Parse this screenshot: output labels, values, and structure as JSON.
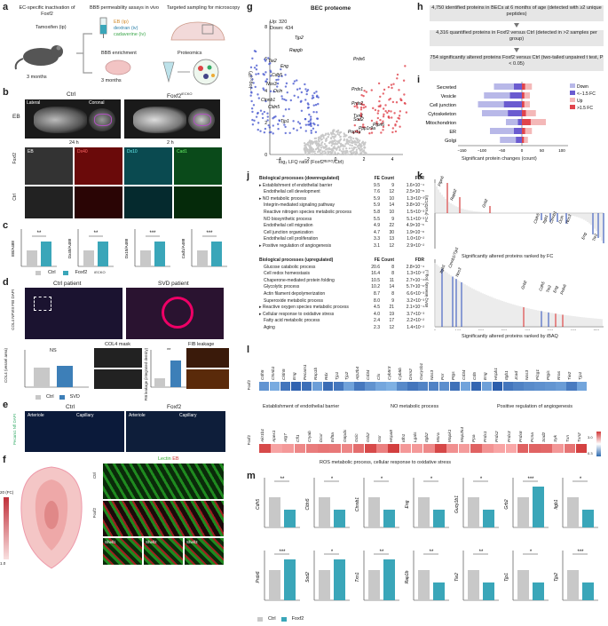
{
  "panels": {
    "a": {
      "letter": "a",
      "headers": [
        "EC-specific inactivation of Foxf2",
        "BBB permeability assays in vivo",
        "Targeted sampling for microscopy"
      ],
      "tamoxifen": "Tamoxifen (ip)",
      "age1": "3 months",
      "age2": "3 months",
      "tracers": [
        "EB (ip)",
        "dextran (iv)",
        "cadaverine (iv)"
      ],
      "bec_enrich": "BBB enrichment",
      "proteomics": "Proteomics"
    },
    "b": {
      "letter": "b",
      "ctrl": "Ctrl",
      "foxf2": "Foxf2",
      "sup": "iECKO",
      "lateral": "Lateral",
      "coronal": "Coronal",
      "eb": "EB",
      "t24": "24 h",
      "t2": "2 h",
      "labels": [
        "EB",
        "Dx40",
        "Dx10",
        "Cad1"
      ],
      "rowlabels": [
        "Foxf2",
        "Ctrl"
      ]
    },
    "c": {
      "letter": "c",
      "ylabels": [
        "EB/A488",
        "Dx40/A488",
        "Dx10/A488",
        "Cad1/A488"
      ],
      "sig": [
        "**",
        "**",
        "***",
        "***"
      ],
      "legend": [
        "Ctrl",
        "Foxf2"
      ],
      "legend_sup": "iECKO",
      "colors": {
        "ctrl": "#c8c8c8",
        "ko": "#3aa6b9"
      }
    },
    "d": {
      "letter": "d",
      "ctrl_patient": "Ctrl patient",
      "svd_patient": "SVD patient",
      "stain": "COL4 NFVIII FIB DAPI",
      "col4mask": "COL4 mask",
      "fib": "FIB leakage",
      "ylab1": "COL4 (vessel area)",
      "ylab2": "FIB leakage (integrated density)",
      "ns": "NS",
      "sig": "**",
      "legend": [
        "Ctrl",
        "SVD"
      ]
    },
    "e": {
      "letter": "e",
      "ctrl": "Ctrl",
      "foxf2": "Foxf2",
      "arteriole": "Arteriole",
      "capillary": "Capillary",
      "stain": "Pecam1 Nfl DAPI"
    },
    "f": {
      "letter": "f",
      "stain_lectin": "Lectin",
      "stain_eb": "EB",
      "ctrl": "Ctrl",
      "foxf2": "Foxf2",
      "scale_top": "20 (FC)",
      "scale_bottom": "1.0",
      "shells": [
        "Shell1",
        "Shell2",
        "Shell3"
      ]
    },
    "g": {
      "letter": "g",
      "title": "BEC proteome",
      "up": "Up: 320",
      "down": "Down: 434",
      "xlabel": "log₂ LFQ ratio (Foxf2ᴵᴱᶜᴷᴼ/Ctrl)",
      "ylabel": "−log₁₀(P)",
      "xticks": [
        "−4",
        "−2",
        "0",
        "2",
        "4"
      ],
      "yticks": [
        "0",
        "2",
        "4",
        "6",
        "8"
      ],
      "genes_down": [
        "Tjp2",
        "Rapgb",
        "Tie2",
        "Eng",
        "Cdh5",
        "Nos3",
        "Ocln",
        "Ctnnb1",
        "Cldn5",
        "Tjp1"
      ],
      "genes_up": [
        "Prdx6",
        "Prdx1",
        "Prdx2",
        "Txn1",
        "Ptpn6",
        "Sod2",
        "Ppp1r9a",
        "Pop1a"
      ]
    },
    "h": {
      "letter": "h",
      "box1": "4,750 identified proteins in BECs at 6 months of age (detected with ≥2 unique peptides)",
      "box2": "4,316 quantified proteins in Foxf2 versus Ctrl (detected in >2 samples per group)",
      "box3": "754 significantly altered proteins Foxf2 versus Ctrl (two-tailed unpaired t test, P < 0.05)"
    },
    "i": {
      "letter": "i",
      "xlabel": "Significant protein changes (count)",
      "xticks": [
        "−150",
        "−100",
        "−50",
        "0",
        "50",
        "100"
      ],
      "legend": [
        "Down",
        "<−1.5 FC",
        "Up",
        ">1.5 FC"
      ]
    },
    "j": {
      "letter": "j",
      "hdr_down": [
        "Biological processes (downregulated)",
        "FE",
        "Count",
        "FDR"
      ],
      "rows_down": [
        [
          "Establishment of endothelial barrier",
          "9.5",
          "9",
          "1.6×10⁻⁴"
        ],
        [
          "Endothelial cell development",
          "7.6",
          "12",
          "2.5×10⁻⁵"
        ],
        [
          "NO metabolic process",
          "5.9",
          "10",
          "1.3×10⁻³"
        ],
        [
          "Integrin-mediated signaling pathway",
          "5.9",
          "14",
          "3.8×10⁻⁴"
        ],
        [
          "Reactive nitrogen species metabolic process",
          "5.8",
          "10",
          "1.5×10⁻³"
        ],
        [
          "NO biosynthetic process",
          "5.5",
          "9",
          "5.1×10⁻³"
        ],
        [
          "Endothelial cell migration",
          "4.9",
          "22",
          "4.9×10⁻⁶"
        ],
        [
          "Cell junction organization",
          "4.7",
          "30",
          "1.9×10⁻⁸"
        ],
        [
          "Endothelial cell proliferation",
          "3.3",
          "13",
          "1.0×10⁻²"
        ],
        [
          "Positive regulation of angiogenesis",
          "3.1",
          "12",
          "2.9×10⁻²"
        ]
      ],
      "hdr_up": [
        "Biological processes (upregulated)",
        "FE",
        "Count",
        "FDR"
      ],
      "rows_up": [
        [
          "Glucose catabolic process",
          "20.6",
          "8",
          "2.8×10⁻⁴"
        ],
        [
          "Cell redox homeostasis",
          "16.4",
          "8",
          "1.3×10⁻³"
        ],
        [
          "Chaperone-mediated protein folding",
          "10.5",
          "11",
          "2.7×10⁻⁴"
        ],
        [
          "Glycolytic process",
          "10.2",
          "14",
          "5.7×10⁻⁶"
        ],
        [
          "Actin filament depolymerization",
          "8.7",
          "8",
          "6.6×10⁻³"
        ],
        [
          "Superoxide metabolic process",
          "8.0",
          "9",
          "3.2×10⁻³"
        ],
        [
          "Reactive oxygen species metabolic process",
          "4.5",
          "21",
          "2.1×10⁻⁴"
        ],
        [
          "Cellular response to oxidative stress",
          "4.0",
          "19",
          "3.7×10⁻³"
        ],
        [
          "Fatty acid metabolic process",
          "2.4",
          "17",
          "2.2×10⁻²"
        ],
        [
          "Aging",
          "2.3",
          "12",
          "1.4×10⁻²"
        ]
      ]
    },
    "k": {
      "letter": "k",
      "ylabel_top": "FC (Foxf2/Ctrl)",
      "xlabel_top": "Significantly altered proteins ranked by FC",
      "ylabel_bot": "iBAQ intensity (log₁₀)",
      "xlabel_bot": "Significantly altered proteins ranked by iBAQ",
      "genes_top_up": [
        "Ptpn6",
        "Rapb2",
        "Grb2"
      ],
      "genes_top_down": [
        "Cldn5",
        "Itgb1",
        "Ctnnb1",
        "Ocln",
        "Nos3",
        "Eng",
        "Tie2"
      ],
      "genes_bot": [
        "Itgb1",
        "Ctnnb1/Tjp1",
        "Nos3",
        "Grb2",
        "Cdh5",
        "Tie2",
        "Eng",
        "Prdx6"
      ],
      "xticks_bot": [
        "0",
        "100",
        "200",
        "300",
        "400",
        "500",
        "600",
        "700"
      ]
    },
    "l": {
      "letter": "l",
      "rowlabel": "Foxf2",
      "group1": "Establishment of endothelial barrier",
      "group2": "NO metabolic process",
      "group3": "Positive regulation of angiogenesis",
      "group4": "ROS metabolic process, cellular response to oxidative stress",
      "genes_row1": [
        "Cdh5",
        "Ctnnb1",
        "Cldn5",
        "Eng",
        "Pecam1",
        "Rap1b",
        "Rdx",
        "Tjp1",
        "Tjp2",
        "Atp2b4",
        "Cd34",
        "Clu",
        "Cyb5r3",
        "Cyb5b",
        "Dnm2",
        "Gucy1b1",
        "Nos3",
        "Por",
        "Ptgs",
        "Cd34",
        "Cd5",
        "Eng",
        "Hspb1",
        "Itgb1",
        "Jcad",
        "Nos3",
        "Plcg1",
        "Ptgis",
        "Rras",
        "Tie2",
        "Tjp1"
      ],
      "genes_row2": [
        "Akr1b1",
        "Apex1",
        "Atg7",
        "Cfl1",
        "Cryab",
        "Dcxr",
        "Eif5a",
        "G6pdx",
        "Gclc",
        "Grb2",
        "Gsr",
        "Hspa8",
        "Idh1",
        "Lgals",
        "Itgb2",
        "Msra",
        "Mapk1",
        "Map2k4",
        "Ppa",
        "Prdx1",
        "Prdx2",
        "Prdx3",
        "Prdx6",
        "Pcna",
        "Sod2",
        "Syk",
        "Txn",
        "Txn2"
      ],
      "scale": [
        "0.3",
        "FC",
        "3.0"
      ]
    },
    "m": {
      "letter": "m",
      "genes_row1": [
        "Cdh5",
        "Cldn5",
        "Ctnnb1",
        "Eng",
        "Gucy1b1",
        "Grb2",
        "Itgb1"
      ],
      "sig_row1": [
        "**",
        "*",
        "*",
        "*",
        "*",
        "***",
        "*"
      ],
      "genes_row2": [
        "Prdx6",
        "Sod2",
        "Txn1",
        "Rap1b",
        "Tie2",
        "Tjp1",
        "Tjp2"
      ],
      "sig_row2": [
        "***",
        "*",
        "**",
        "**",
        "**",
        "*",
        "***"
      ],
      "legend": [
        "Ctrl",
        "Foxf2"
      ]
    }
  }
}
